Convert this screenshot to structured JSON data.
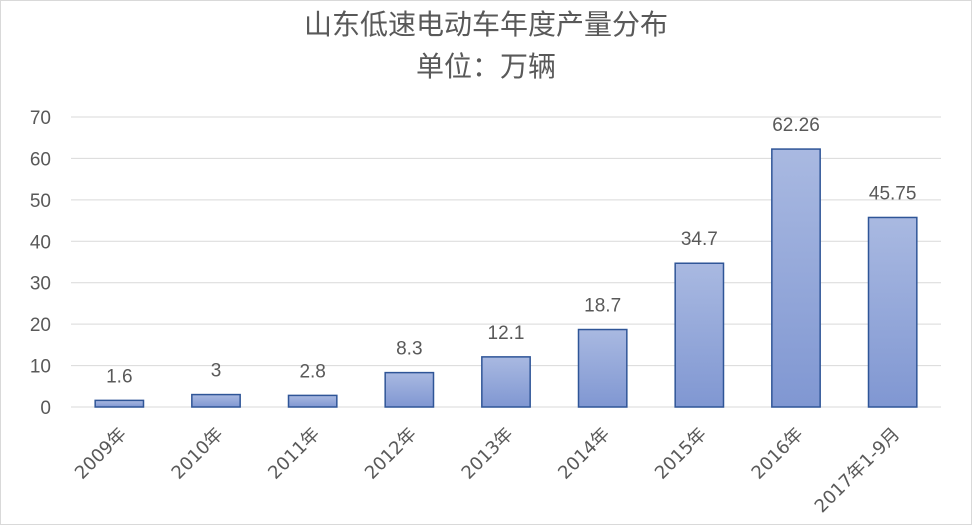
{
  "chart_data": {
    "type": "bar",
    "title": "山东低速电动车年度产量分布",
    "subtitle": "单位：万辆",
    "categories": [
      "2009年",
      "2010年",
      "2011年",
      "2012年",
      "2013年",
      "2014年",
      "2015年",
      "2016年",
      "2017年1-9月"
    ],
    "values": [
      1.6,
      3,
      2.8,
      8.3,
      12.1,
      18.7,
      34.7,
      62.26,
      45.75
    ],
    "data_labels": [
      "1.6",
      "3",
      "2.8",
      "8.3",
      "12.1",
      "18.7",
      "34.7",
      "62.26",
      "45.75"
    ],
    "ylim": [
      0,
      70
    ],
    "yticks": [
      0,
      10,
      20,
      30,
      40,
      50,
      60,
      70
    ],
    "grid": true,
    "legend": "none",
    "bar_fill_top": "#a9b9e1",
    "bar_fill_bottom": "#8097d2",
    "bar_stroke": "#2f5597",
    "grid_color": "#d9d9d9"
  }
}
